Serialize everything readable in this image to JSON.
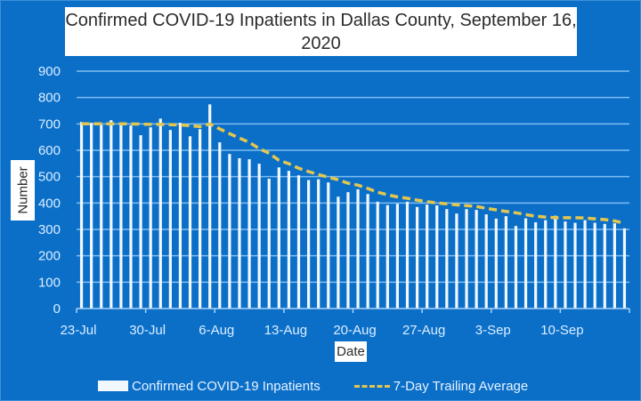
{
  "chart_data": {
    "type": "bar",
    "title": "Confirmed COVID-19 Inpatients in Dallas County, September 16, 2020",
    "title_lines": [
      "Confirmed COVID-19 Inpatients in Dallas County, September 16,",
      "2020"
    ],
    "xlabel": "Date",
    "ylabel": "Number",
    "ylim": [
      0,
      900
    ],
    "yticks": [
      0,
      100,
      200,
      300,
      400,
      500,
      600,
      700,
      800,
      900
    ],
    "xtick_labels": [
      "23-Jul",
      "30-Jul",
      "6-Aug",
      "13-Aug",
      "20-Aug",
      "27-Aug",
      "3-Sep",
      "10-Sep"
    ],
    "grid": true,
    "legend_position": "bottom",
    "start_date": "23-Jul",
    "end_date": "16-Sep",
    "series": [
      {
        "name": "Confirmed COVID-19 Inpatients",
        "type": "bar",
        "color": "#f2f8ff",
        "values": [
          707,
          704,
          697,
          714,
          694,
          694,
          657,
          687,
          720,
          677,
          704,
          653,
          680,
          774,
          630,
          586,
          570,
          566,
          549,
          492,
          535,
          522,
          505,
          487,
          490,
          478,
          424,
          441,
          452,
          434,
          405,
          392,
          397,
          405,
          385,
          394,
          391,
          377,
          360,
          377,
          374,
          357,
          341,
          350,
          313,
          342,
          327,
          335,
          352,
          330,
          325,
          335,
          325,
          321,
          323,
          304
        ]
      },
      {
        "name": "7-Day Trailing Average",
        "type": "line",
        "style": "dashed",
        "color": "#e3c64f",
        "values": [
          700,
          700,
          700,
          700,
          700,
          700,
          699,
          698,
          698,
          697,
          696,
          693,
          690,
          700,
          681,
          663,
          646,
          630,
          606,
          589,
          562,
          549,
          532,
          519,
          508,
          498,
          488,
          475,
          468,
          455,
          441,
          431,
          423,
          418,
          411,
          405,
          400,
          397,
          393,
          390,
          387,
          380,
          374,
          368,
          363,
          356,
          350,
          347,
          344,
          344,
          344,
          343,
          340,
          337,
          332,
          323
        ]
      }
    ]
  },
  "colors": {
    "background": "#0b6fc8",
    "gridline": "#7fbdf0",
    "tick_text": "#dbeeff"
  }
}
